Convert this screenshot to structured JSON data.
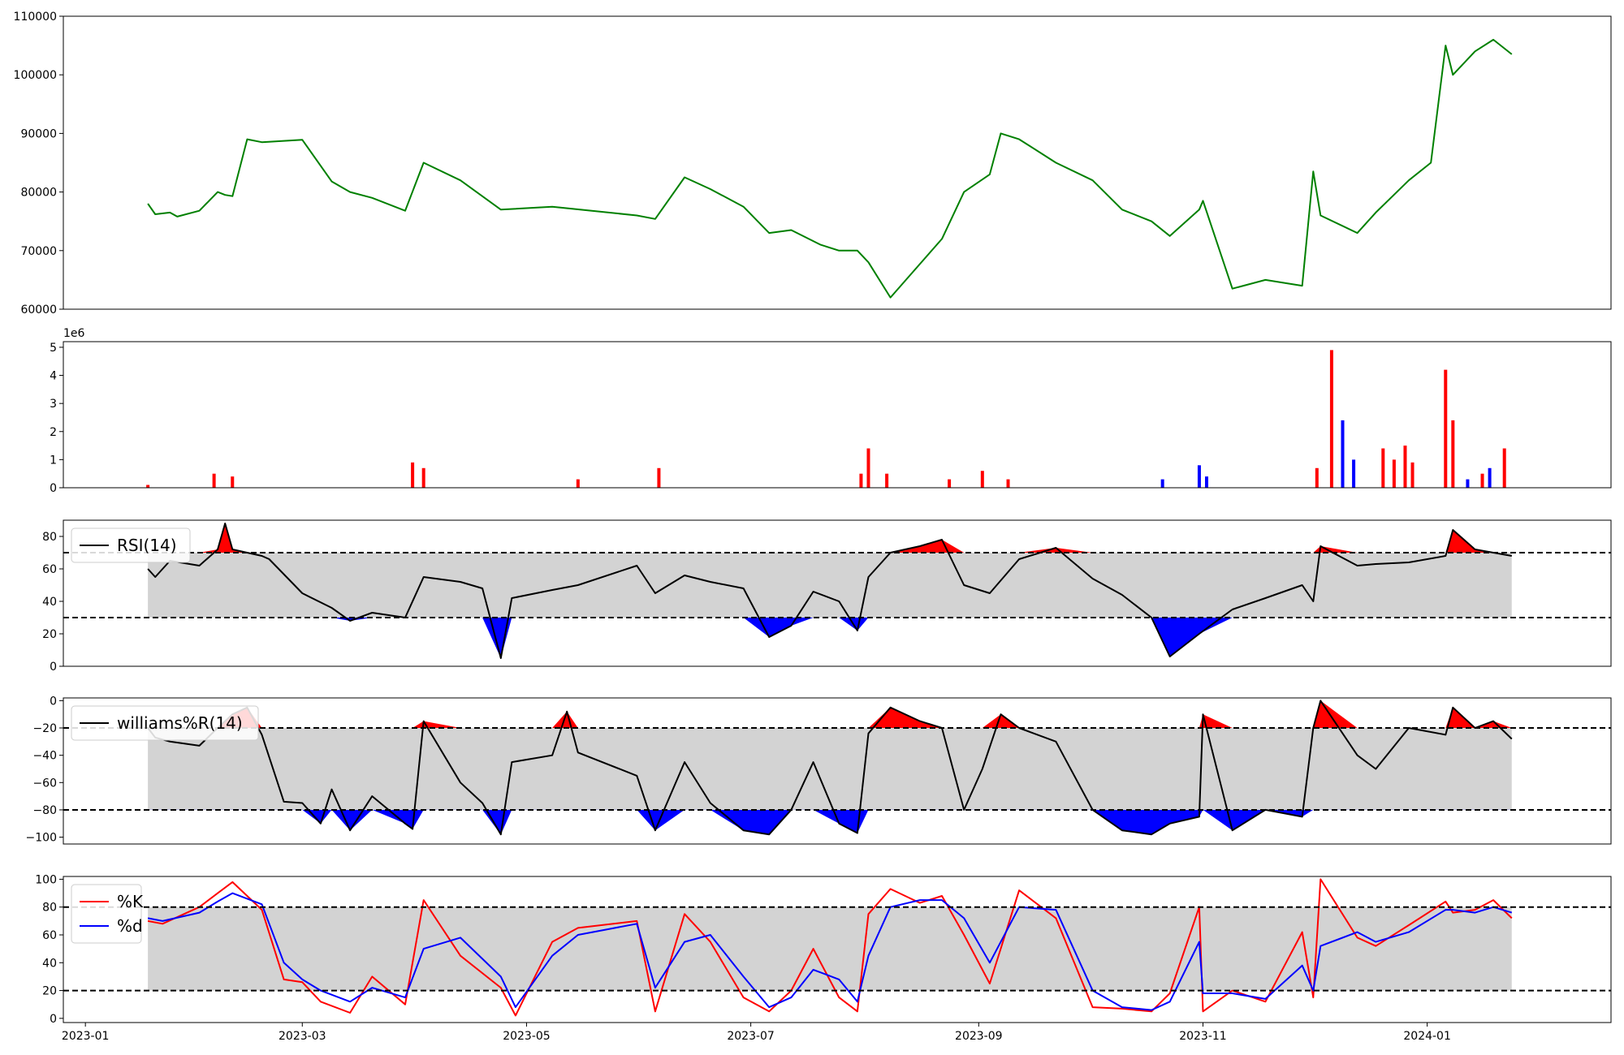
{
  "chart_data": [
    {
      "type": "line",
      "panel": "price",
      "ylim": [
        60000,
        110000
      ],
      "yticks": [
        60000,
        70000,
        80000,
        90000,
        100000,
        110000
      ],
      "ytick_labels": [
        "60000",
        "70000",
        "80000",
        "90000",
        "100000",
        "110000"
      ],
      "line_color": "#008000",
      "series": [
        {
          "x": [
            "2023-01-18",
            "2023-01-20",
            "2023-01-24",
            "2023-01-26",
            "2023-02-01",
            "2023-02-06",
            "2023-02-08",
            "2023-02-10",
            "2023-02-14",
            "2023-02-18",
            "2023-03-01",
            "2023-03-09",
            "2023-03-14",
            "2023-03-20",
            "2023-03-29",
            "2023-04-03",
            "2023-04-13",
            "2023-04-24",
            "2023-05-08",
            "2023-05-31",
            "2023-06-05",
            "2023-06-13",
            "2023-06-20",
            "2023-06-29",
            "2023-07-06",
            "2023-07-12",
            "2023-07-20",
            "2023-07-25",
            "2023-07-30",
            "2023-08-02",
            "2023-08-08",
            "2023-08-22",
            "2023-08-28",
            "2023-09-04",
            "2023-09-07",
            "2023-09-12",
            "2023-09-22",
            "2023-10-02",
            "2023-10-10",
            "2023-10-18",
            "2023-10-23",
            "2023-10-31",
            "2023-11-01",
            "2023-11-09",
            "2023-11-18",
            "2023-11-28",
            "2023-12-01",
            "2023-12-03",
            "2023-12-13",
            "2023-12-18",
            "2023-12-27",
            "2024-01-02",
            "2024-01-06",
            "2024-01-08",
            "2024-01-14",
            "2024-01-19",
            "2024-01-24"
          ],
          "y": [
            78000,
            76200,
            76500,
            75800,
            76800,
            80000,
            79500,
            79300,
            89000,
            88500,
            88900,
            81800,
            80000,
            79000,
            76800,
            85000,
            82000,
            77000,
            77500,
            76000,
            75400,
            82500,
            80500,
            77500,
            73000,
            73500,
            71000,
            70000,
            70000,
            68000,
            62000,
            72000,
            80000,
            83000,
            90000,
            89000,
            85000,
            82000,
            77000,
            75000,
            72500,
            77000,
            78500,
            63500,
            65000,
            64000,
            83500,
            76000,
            73000,
            76500,
            82000,
            85000,
            105000,
            100000,
            104000,
            106000,
            103500
          ]
        }
      ]
    },
    {
      "type": "bar",
      "panel": "volume",
      "scale_label": "1e6",
      "ylim": [
        0,
        5.2
      ],
      "yticks": [
        0,
        1,
        2,
        3,
        4,
        5
      ],
      "ytick_labels": [
        "0",
        "1",
        "2",
        "3",
        "4",
        "5"
      ],
      "up_color": "#ff0000",
      "down_color": "#0000ff",
      "dates": [
        "2023-01-18",
        "2023-02-05",
        "2023-02-10",
        "2023-03-31",
        "2023-04-03",
        "2023-05-15",
        "2023-06-06",
        "2023-07-31",
        "2023-08-02",
        "2023-08-07",
        "2023-08-24",
        "2023-09-02",
        "2023-09-09",
        "2023-10-21",
        "2023-10-31",
        "2023-11-02",
        "2023-12-02",
        "2023-12-06",
        "2023-12-09",
        "2023-12-12",
        "2023-12-20",
        "2023-12-23",
        "2023-12-26",
        "2023-12-28",
        "2024-01-06",
        "2024-01-08",
        "2024-01-12",
        "2024-01-16",
        "2024-01-18",
        "2024-01-22"
      ],
      "values_1e6": [
        0.1,
        0.5,
        0.4,
        0.9,
        0.7,
        0.3,
        0.7,
        0.5,
        1.4,
        0.5,
        0.3,
        0.6,
        0.3,
        0.3,
        0.8,
        0.4,
        0.7,
        4.9,
        2.4,
        1.0,
        1.4,
        1.0,
        1.5,
        0.9,
        4.2,
        2.4,
        0.3,
        0.5,
        0.7,
        1.4
      ],
      "bar_up": [
        true,
        true,
        true,
        true,
        true,
        true,
        true,
        true,
        true,
        true,
        true,
        true,
        true,
        false,
        false,
        false,
        true,
        true,
        false,
        false,
        true,
        true,
        true,
        true,
        true,
        true,
        false,
        true,
        false,
        true
      ]
    },
    {
      "type": "line",
      "panel": "rsi",
      "ylim": [
        0,
        90
      ],
      "yticks": [
        0,
        20,
        40,
        60,
        80
      ],
      "ytick_labels": [
        "0",
        "20",
        "40",
        "60",
        "80"
      ],
      "upper_band": 70,
      "lower_band": 30,
      "series": [
        {
          "name": "RSI(14)",
          "color": "#000000",
          "x": [
            "2023-01-18",
            "2023-01-20",
            "2023-01-24",
            "2023-02-01",
            "2023-02-06",
            "2023-02-08",
            "2023-02-10",
            "2023-02-14",
            "2023-02-18",
            "2023-02-20",
            "2023-03-01",
            "2023-03-09",
            "2023-03-14",
            "2023-03-20",
            "2023-03-29",
            "2023-04-03",
            "2023-04-13",
            "2023-04-19",
            "2023-04-24",
            "2023-04-27",
            "2023-05-08",
            "2023-05-15",
            "2023-05-31",
            "2023-06-05",
            "2023-06-13",
            "2023-06-20",
            "2023-06-29",
            "2023-07-06",
            "2023-07-12",
            "2023-07-18",
            "2023-07-25",
            "2023-07-30",
            "2023-08-02",
            "2023-08-08",
            "2023-08-16",
            "2023-08-22",
            "2023-08-28",
            "2023-09-04",
            "2023-09-12",
            "2023-09-22",
            "2023-10-02",
            "2023-10-10",
            "2023-10-18",
            "2023-10-23",
            "2023-10-31",
            "2023-11-09",
            "2023-11-18",
            "2023-11-28",
            "2023-12-01",
            "2023-12-03",
            "2023-12-13",
            "2023-12-18",
            "2023-12-27",
            "2024-01-06",
            "2024-01-08",
            "2024-01-14",
            "2024-01-19",
            "2024-01-24"
          ],
          "y": [
            60,
            55,
            65,
            62,
            72,
            88,
            72,
            70,
            68,
            66,
            45,
            36,
            28,
            33,
            30,
            55,
            52,
            48,
            5,
            42,
            47,
            50,
            62,
            45,
            56,
            52,
            48,
            18,
            25,
            46,
            40,
            22,
            55,
            70,
            74,
            78,
            50,
            45,
            66,
            73,
            54,
            44,
            30,
            6,
            20,
            35,
            42,
            50,
            40,
            74,
            62,
            63,
            64,
            68,
            84,
            72,
            70,
            68
          ]
        }
      ]
    },
    {
      "type": "line",
      "panel": "williams",
      "ylim": [
        -105,
        2
      ],
      "yticks": [
        -100,
        -80,
        -60,
        -40,
        -20,
        0
      ],
      "ytick_labels": [
        "−100",
        "−80",
        "−60",
        "−40",
        "−20",
        "0"
      ],
      "upper_band": -20,
      "lower_band": -80,
      "series": [
        {
          "name": "williams%R(14)",
          "color": "#000000",
          "x": [
            "2023-01-18",
            "2023-01-20",
            "2023-01-24",
            "2023-02-01",
            "2023-02-06",
            "2023-02-10",
            "2023-02-14",
            "2023-02-18",
            "2023-02-24",
            "2023-03-01",
            "2023-03-06",
            "2023-03-09",
            "2023-03-14",
            "2023-03-20",
            "2023-03-29",
            "2023-03-31",
            "2023-04-03",
            "2023-04-13",
            "2023-04-19",
            "2023-04-24",
            "2023-04-27",
            "2023-05-08",
            "2023-05-12",
            "2023-05-15",
            "2023-05-31",
            "2023-06-05",
            "2023-06-13",
            "2023-06-20",
            "2023-06-29",
            "2023-07-06",
            "2023-07-12",
            "2023-07-18",
            "2023-07-25",
            "2023-07-30",
            "2023-08-02",
            "2023-08-08",
            "2023-08-16",
            "2023-08-22",
            "2023-08-28",
            "2023-09-02",
            "2023-09-07",
            "2023-09-12",
            "2023-09-22",
            "2023-10-02",
            "2023-10-10",
            "2023-10-18",
            "2023-10-23",
            "2023-10-31",
            "2023-11-01",
            "2023-11-09",
            "2023-11-18",
            "2023-11-28",
            "2023-12-01",
            "2023-12-03",
            "2023-12-13",
            "2023-12-18",
            "2023-12-27",
            "2024-01-06",
            "2024-01-08",
            "2024-01-14",
            "2024-01-19",
            "2024-01-24"
          ],
          "y": [
            -20,
            -27,
            -30,
            -33,
            -20,
            -10,
            -5,
            -25,
            -74,
            -75,
            -90,
            -65,
            -95,
            -70,
            -90,
            -94,
            -15,
            -60,
            -75,
            -98,
            -45,
            -40,
            -8,
            -38,
            -55,
            -95,
            -45,
            -75,
            -95,
            -98,
            -80,
            -45,
            -90,
            -97,
            -24,
            -5,
            -15,
            -20,
            -80,
            -50,
            -10,
            -20,
            -30,
            -80,
            -95,
            -98,
            -90,
            -85,
            -10,
            -95,
            -80,
            -85,
            -20,
            0,
            -40,
            -50,
            -20,
            -25,
            -5,
            -20,
            -15,
            -28
          ]
        }
      ]
    },
    {
      "type": "line",
      "panel": "stochastic",
      "ylim": [
        -3,
        102
      ],
      "yticks": [
        0,
        20,
        40,
        60,
        80,
        100
      ],
      "ytick_labels": [
        "0",
        "20",
        "40",
        "60",
        "80",
        "100"
      ],
      "xticks": [
        "2023-01-01",
        "2023-03-01",
        "2023-05-01",
        "2023-07-01",
        "2023-09-01",
        "2023-11-01",
        "2024-01-01"
      ],
      "xtick_labels": [
        "2023-01",
        "2023-03",
        "2023-05",
        "2023-07",
        "2023-09",
        "2023-11",
        "2024-01"
      ],
      "upper_band": 80,
      "lower_band": 20,
      "series": [
        {
          "name": "%K",
          "color": "#ff0000",
          "x": [
            "2023-01-18",
            "2023-01-22",
            "2023-02-01",
            "2023-02-06",
            "2023-02-10",
            "2023-02-18",
            "2023-02-24",
            "2023-03-01",
            "2023-03-06",
            "2023-03-14",
            "2023-03-20",
            "2023-03-29",
            "2023-04-03",
            "2023-04-13",
            "2023-04-24",
            "2023-04-28",
            "2023-05-08",
            "2023-05-15",
            "2023-05-31",
            "2023-06-05",
            "2023-06-13",
            "2023-06-20",
            "2023-06-29",
            "2023-07-06",
            "2023-07-12",
            "2023-07-18",
            "2023-07-25",
            "2023-07-30",
            "2023-08-02",
            "2023-08-08",
            "2023-08-16",
            "2023-08-22",
            "2023-08-28",
            "2023-09-04",
            "2023-09-12",
            "2023-09-22",
            "2023-10-02",
            "2023-10-10",
            "2023-10-18",
            "2023-10-23",
            "2023-10-31",
            "2023-11-01",
            "2023-11-09",
            "2023-11-18",
            "2023-11-28",
            "2023-12-01",
            "2023-12-03",
            "2023-12-13",
            "2023-12-18",
            "2023-12-27",
            "2024-01-06",
            "2024-01-08",
            "2024-01-14",
            "2024-01-19",
            "2024-01-24"
          ],
          "y": [
            70,
            68,
            80,
            90,
            98,
            78,
            28,
            26,
            12,
            4,
            30,
            10,
            85,
            45,
            22,
            2,
            55,
            65,
            70,
            5,
            75,
            55,
            15,
            5,
            20,
            50,
            15,
            5,
            75,
            93,
            83,
            88,
            60,
            25,
            92,
            72,
            8,
            7,
            5,
            18,
            80,
            5,
            20,
            12,
            62,
            15,
            100,
            58,
            52,
            67,
            84,
            76,
            78,
            85,
            72
          ]
        },
        {
          "name": "%d",
          "color": "#0000ff",
          "x": [
            "2023-01-18",
            "2023-01-22",
            "2023-02-01",
            "2023-02-06",
            "2023-02-10",
            "2023-02-18",
            "2023-02-24",
            "2023-03-01",
            "2023-03-06",
            "2023-03-14",
            "2023-03-20",
            "2023-03-29",
            "2023-04-03",
            "2023-04-13",
            "2023-04-24",
            "2023-04-28",
            "2023-05-08",
            "2023-05-15",
            "2023-05-31",
            "2023-06-05",
            "2023-06-13",
            "2023-06-20",
            "2023-06-29",
            "2023-07-06",
            "2023-07-12",
            "2023-07-18",
            "2023-07-25",
            "2023-07-30",
            "2023-08-02",
            "2023-08-08",
            "2023-08-16",
            "2023-08-22",
            "2023-08-28",
            "2023-09-04",
            "2023-09-12",
            "2023-09-22",
            "2023-10-02",
            "2023-10-10",
            "2023-10-18",
            "2023-10-23",
            "2023-10-31",
            "2023-11-01",
            "2023-11-09",
            "2023-11-18",
            "2023-11-28",
            "2023-12-01",
            "2023-12-03",
            "2023-12-13",
            "2023-12-18",
            "2023-12-27",
            "2024-01-06",
            "2024-01-08",
            "2024-01-14",
            "2024-01-19",
            "2024-01-24"
          ],
          "y": [
            72,
            70,
            76,
            84,
            90,
            82,
            40,
            28,
            20,
            12,
            22,
            15,
            50,
            58,
            30,
            8,
            45,
            60,
            68,
            22,
            55,
            60,
            30,
            8,
            15,
            35,
            28,
            12,
            45,
            80,
            85,
            85,
            72,
            40,
            80,
            78,
            20,
            8,
            6,
            12,
            55,
            18,
            18,
            14,
            38,
            20,
            52,
            62,
            55,
            62,
            78,
            78,
            76,
            80,
            76
          ]
        }
      ]
    }
  ]
}
